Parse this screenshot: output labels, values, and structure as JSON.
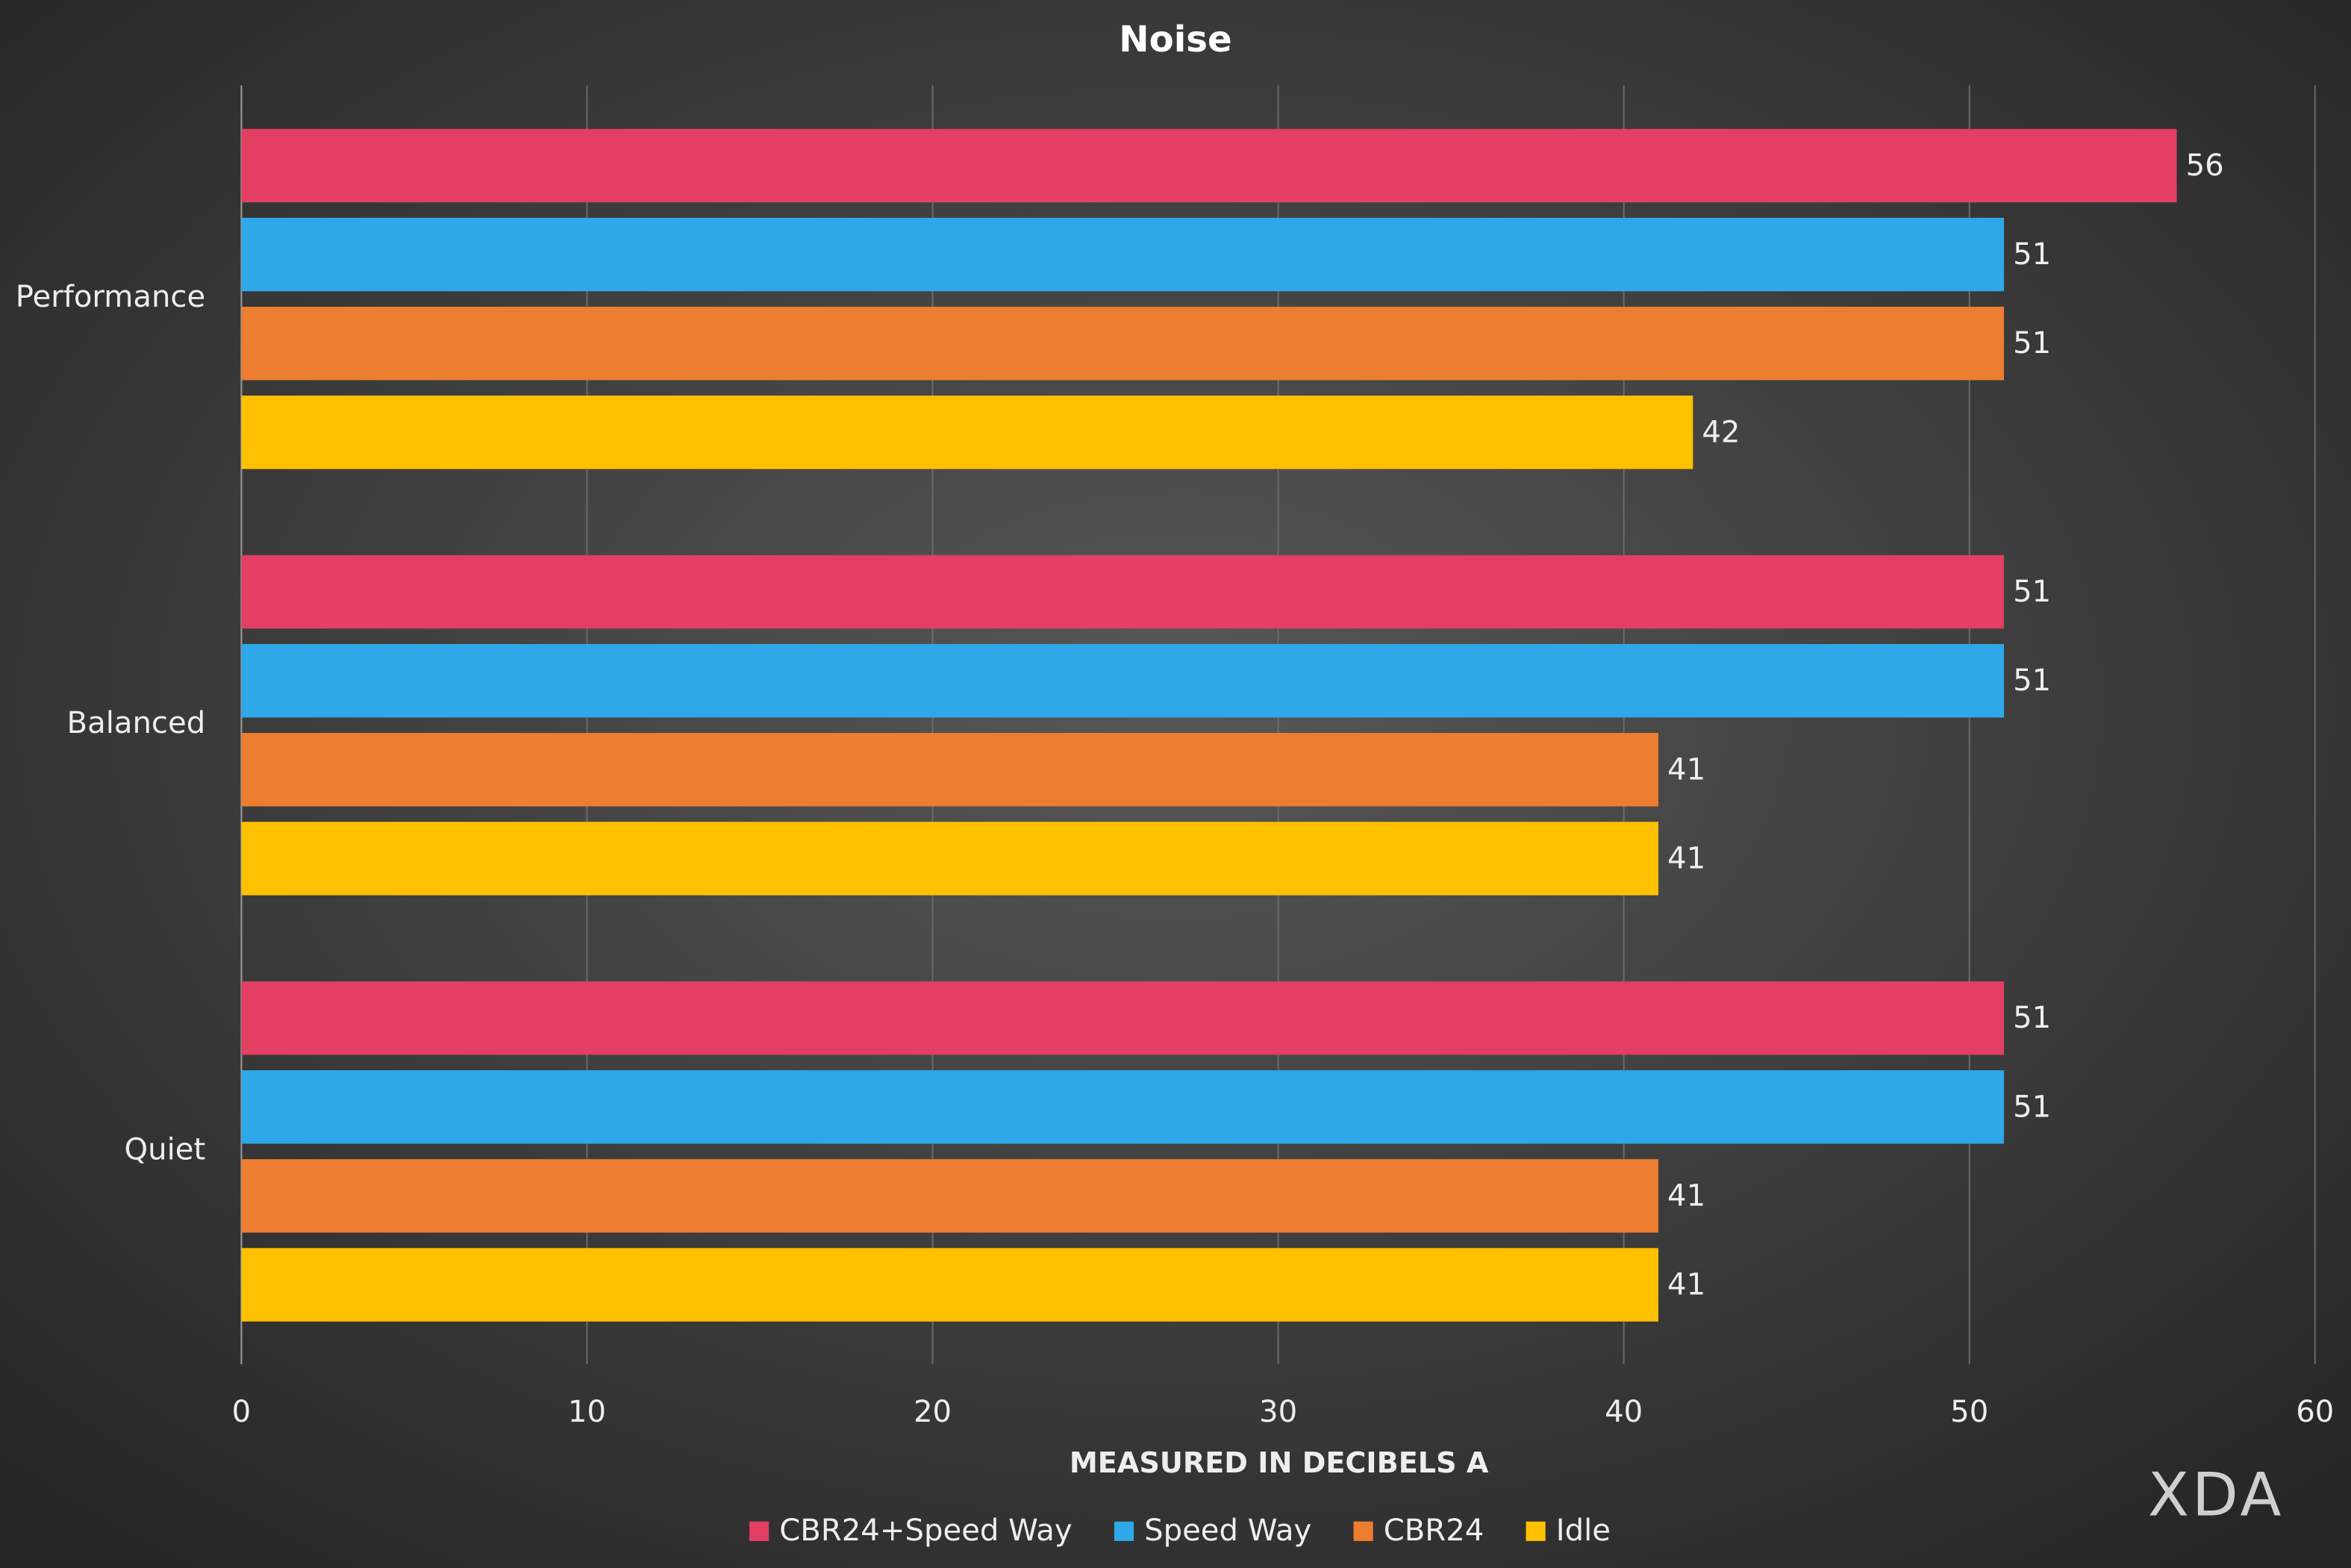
{
  "chart_data": {
    "type": "bar",
    "orientation": "horizontal",
    "title": "Noise",
    "xlabel": "MEASURED IN DECIBELS A",
    "categories": [
      "Performance",
      "Balanced",
      "Quiet"
    ],
    "series": [
      {
        "name": "CBR24+Speed Way",
        "color": "#e23f63",
        "values": [
          56,
          51,
          51
        ]
      },
      {
        "name": "Speed Way",
        "color": "#2ea8e8",
        "values": [
          51,
          51,
          51
        ]
      },
      {
        "name": "CBR24",
        "color": "#ed7d31",
        "values": [
          51,
          41,
          41
        ]
      },
      {
        "name": "Idle",
        "color": "#ffc000",
        "values": [
          42,
          41,
          41
        ]
      }
    ],
    "xlim": [
      0,
      60
    ],
    "xticks": [
      0,
      10,
      20,
      30,
      40,
      50,
      60
    ],
    "grid": true,
    "legend": "bottom",
    "watermark": "XDA"
  }
}
